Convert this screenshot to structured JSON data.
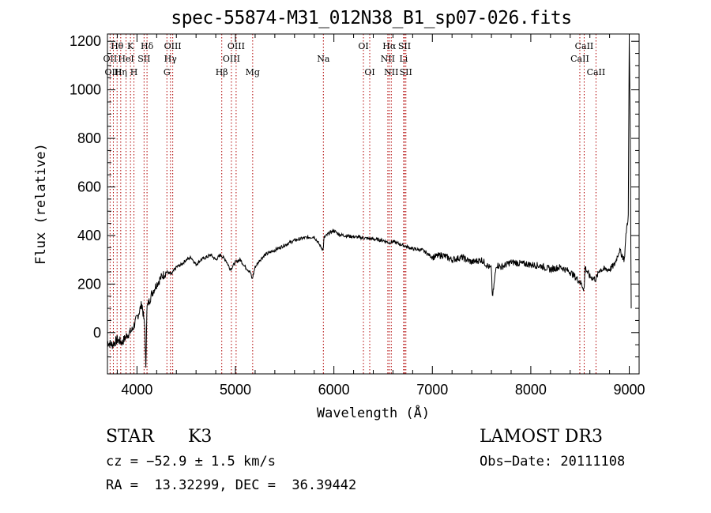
{
  "chart_data": {
    "type": "line",
    "title": "spec-55874-M31_012N38_B1_sp07-026.fits",
    "xlabel": "Wavelength (Å)",
    "ylabel": "Flux (relative)",
    "xlim": [
      3700,
      9100
    ],
    "ylim": [
      -170,
      1230
    ],
    "xticks": [
      4000,
      5000,
      6000,
      7000,
      8000,
      9000
    ],
    "yticks": [
      0,
      200,
      400,
      600,
      800,
      1000,
      1200
    ],
    "series": [
      {
        "name": "spectrum",
        "x": [
          3700,
          3750,
          3800,
          3850,
          3900,
          3950,
          4000,
          4050,
          4080,
          4090,
          4100,
          4150,
          4200,
          4250,
          4300,
          4350,
          4400,
          4450,
          4500,
          4550,
          4600,
          4650,
          4700,
          4750,
          4800,
          4850,
          4900,
          4950,
          5000,
          5050,
          5100,
          5150,
          5170,
          5200,
          5250,
          5300,
          5400,
          5500,
          5600,
          5700,
          5800,
          5890,
          5900,
          5950,
          6000,
          6050,
          6100,
          6200,
          6300,
          6400,
          6500,
          6563,
          6600,
          6700,
          6800,
          6900,
          7000,
          7100,
          7200,
          7300,
          7400,
          7500,
          7600,
          7610,
          7650,
          7700,
          7800,
          7900,
          8000,
          8100,
          8200,
          8300,
          8400,
          8498,
          8542,
          8550,
          8600,
          8662,
          8700,
          8800,
          8850,
          8900,
          8950,
          8970,
          8990,
          9000,
          9010,
          9020
        ],
        "y": [
          -40,
          -50,
          -30,
          -40,
          -10,
          10,
          60,
          120,
          20,
          -160,
          100,
          160,
          200,
          230,
          250,
          240,
          270,
          280,
          300,
          310,
          280,
          300,
          310,
          320,
          300,
          320,
          300,
          260,
          290,
          300,
          270,
          250,
          220,
          270,
          300,
          320,
          340,
          360,
          380,
          390,
          395,
          340,
          390,
          410,
          420,
          405,
          400,
          395,
          390,
          385,
          380,
          370,
          375,
          360,
          345,
          340,
          310,
          320,
          300,
          310,
          290,
          300,
          260,
          140,
          280,
          270,
          290,
          285,
          280,
          275,
          260,
          270,
          250,
          210,
          180,
          270,
          230,
          220,
          260,
          260,
          280,
          340,
          300,
          420,
          480,
          1210,
          800,
          100
        ]
      }
    ],
    "lines": [
      {
        "name": "Hθ",
        "wl": 3798,
        "row": 1
      },
      {
        "name": "OII",
        "wl": 3727,
        "row": 2
      },
      {
        "name": "OIII",
        "wl": 3760,
        "row": 3
      },
      {
        "name": "K",
        "wl": 3934,
        "row": 1
      },
      {
        "name": "HeI",
        "wl": 3889,
        "row": 2
      },
      {
        "name": "Hη",
        "wl": 3835,
        "row": 3
      },
      {
        "name": "SII",
        "wl": 4072,
        "row": 2
      },
      {
        "name": "H",
        "wl": 3969,
        "row": 3
      },
      {
        "name": "Hδ",
        "wl": 4102,
        "row": 1
      },
      {
        "name": "OIII",
        "wl": 4363,
        "row": 1
      },
      {
        "name": "Hγ",
        "wl": 4340,
        "row": 2
      },
      {
        "name": "G",
        "wl": 4304,
        "row": 3
      },
      {
        "name": "OIII",
        "wl": 5007,
        "row": 1
      },
      {
        "name": "OIII",
        "wl": 4959,
        "row": 2
      },
      {
        "name": "Hβ",
        "wl": 4861,
        "row": 3
      },
      {
        "name": "Mg",
        "wl": 5175,
        "row": 3
      },
      {
        "name": "Na",
        "wl": 5893,
        "row": 2
      },
      {
        "name": "OI",
        "wl": 6300,
        "row": 1
      },
      {
        "name": "OI",
        "wl": 6364,
        "row": 3
      },
      {
        "name": "Hα",
        "wl": 6563,
        "row": 1
      },
      {
        "name": "NII",
        "wl": 6548,
        "row": 2
      },
      {
        "name": "NII",
        "wl": 6583,
        "row": 3
      },
      {
        "name": "SII",
        "wl": 6717,
        "row": 1
      },
      {
        "name": "Li",
        "wl": 6708,
        "row": 2
      },
      {
        "name": "SII",
        "wl": 6731,
        "row": 3
      },
      {
        "name": "CaII",
        "wl": 8542,
        "row": 1
      },
      {
        "name": "CaII",
        "wl": 8498,
        "row": 2
      },
      {
        "name": "CaII",
        "wl": 8662,
        "row": 3
      }
    ]
  },
  "info": {
    "class_label": "STAR",
    "subclass": "K3",
    "survey": "LAMOST DR3",
    "cz": "cz = −52.9 ± 1.5 km/s",
    "obs_date": "Obs−Date: 20111108",
    "coords": "RA =  13.32299, DEC =  36.39442"
  }
}
